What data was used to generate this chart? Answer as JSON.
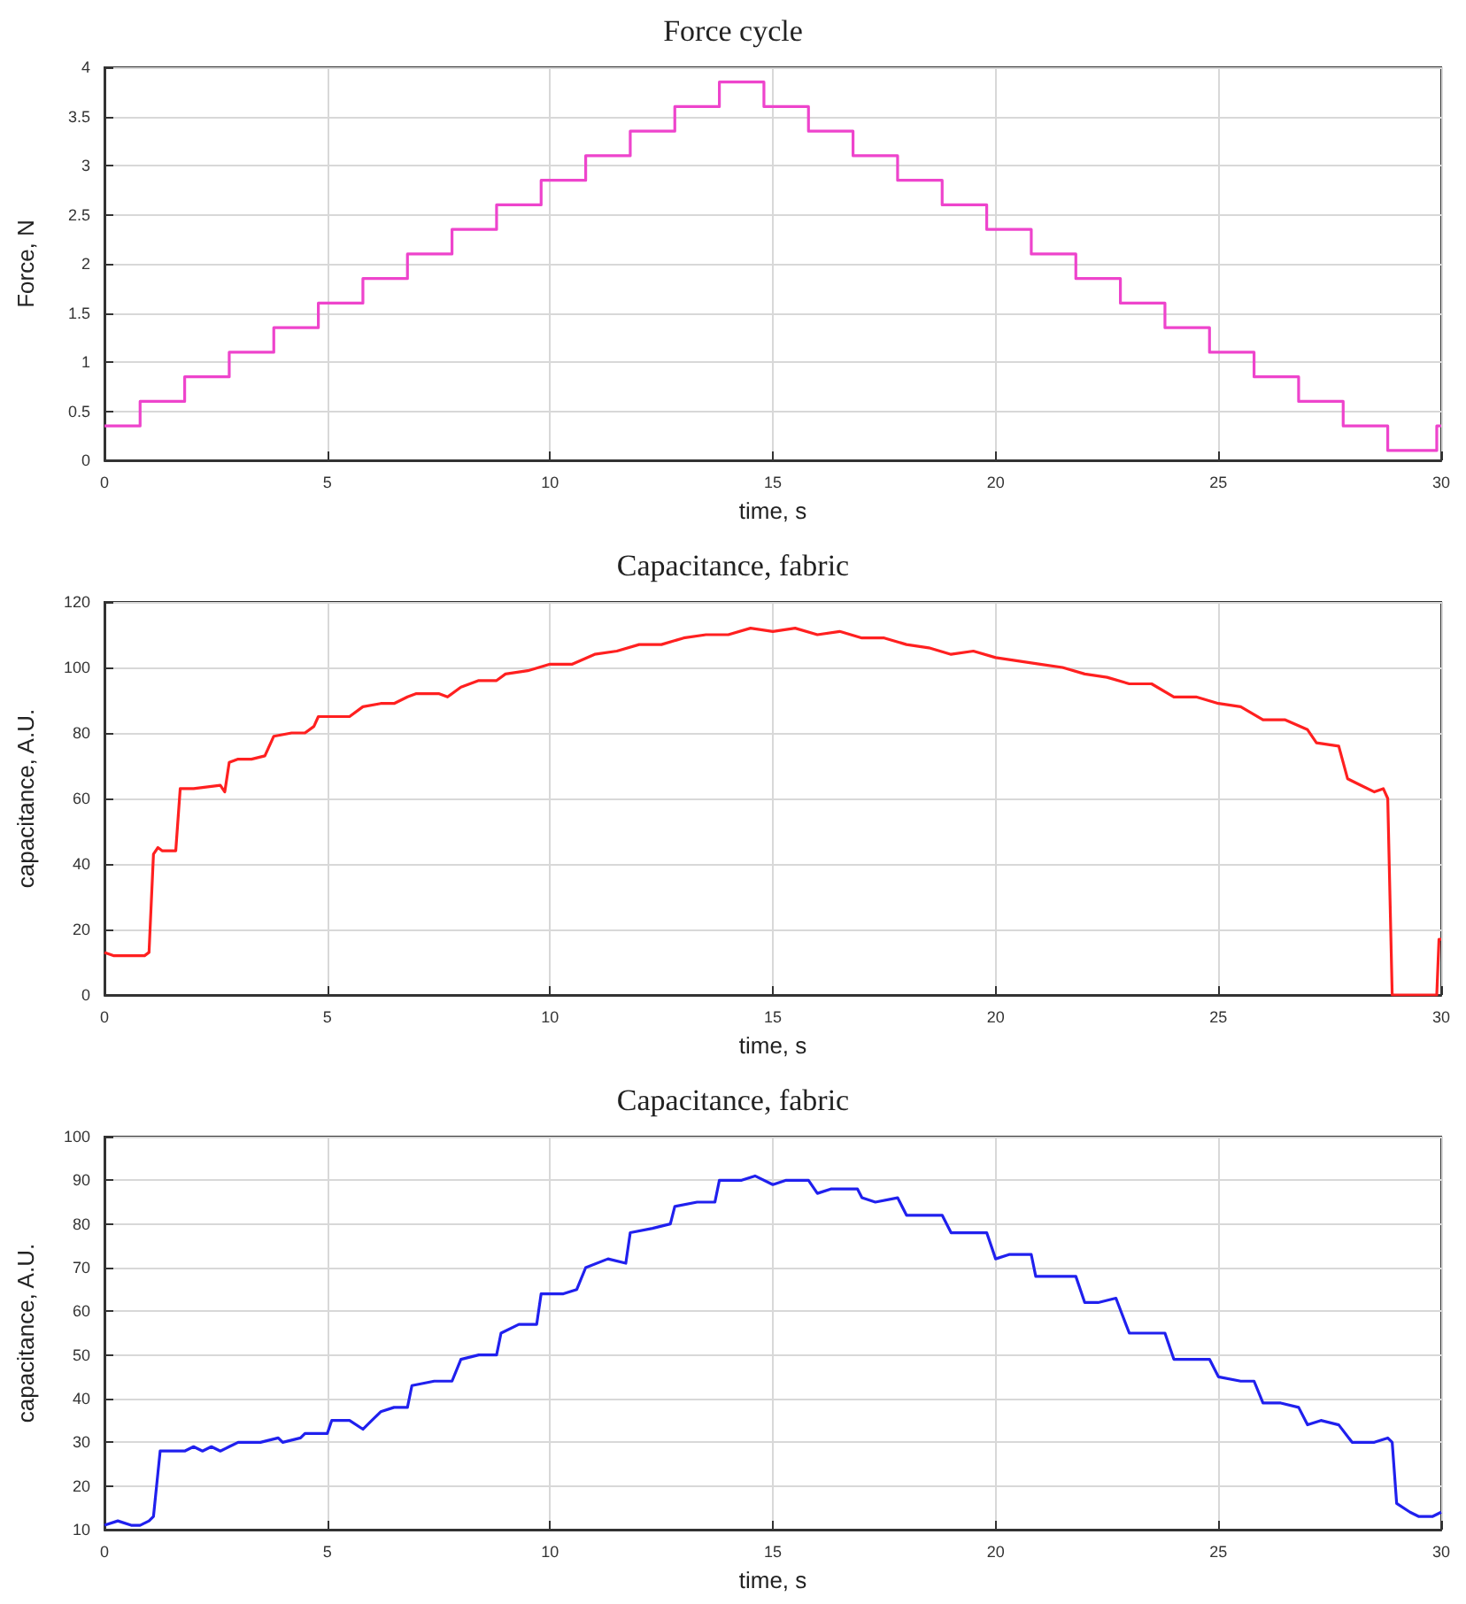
{
  "chart_data": [
    {
      "type": "step",
      "title": "Force cycle",
      "xlabel": "time, s",
      "ylabel": "Force, N",
      "x": [
        0,
        0.8,
        1.8,
        2.8,
        3.8,
        4.8,
        5.8,
        6.8,
        7.8,
        8.8,
        9.8,
        10.8,
        11.8,
        12.8,
        13.8,
        14.8,
        15.8,
        16.8,
        17.8,
        18.8,
        19.8,
        20.8,
        21.8,
        22.8,
        23.8,
        24.8,
        25.8,
        26.8,
        27.8,
        28.8,
        29.9,
        30
      ],
      "series": [
        {
          "color": "#ee44cc",
          "values": [
            0.35,
            0.6,
            0.85,
            1.1,
            1.35,
            1.6,
            1.85,
            2.1,
            2.35,
            2.6,
            2.85,
            3.1,
            3.35,
            3.6,
            3.85,
            3.6,
            3.35,
            3.1,
            2.85,
            2.6,
            2.35,
            2.1,
            1.85,
            1.6,
            1.35,
            1.1,
            0.85,
            0.6,
            0.35,
            0.1,
            0.35,
            0.35
          ]
        }
      ],
      "xlim": [
        0,
        30
      ],
      "xticks": [
        0,
        5,
        10,
        15,
        20,
        25,
        30
      ],
      "ylim": [
        0,
        4
      ],
      "yticks": [
        0,
        0.5,
        1,
        1.5,
        2,
        2.5,
        3,
        3.5,
        4
      ],
      "grid": true
    },
    {
      "type": "line",
      "title": "Capacitance, fabric",
      "xlabel": "time, s",
      "ylabel": "capacitance, A.U.",
      "x": [
        0,
        0.2,
        0.9,
        1.0,
        1.1,
        1.2,
        1.3,
        1.6,
        1.7,
        2.0,
        2.6,
        2.7,
        2.8,
        3.0,
        3.3,
        3.6,
        3.8,
        4.2,
        4.5,
        4.7,
        4.8,
        5.5,
        5.8,
        6.2,
        6.5,
        6.8,
        7.0,
        7.5,
        7.7,
        8.0,
        8.4,
        8.8,
        9.0,
        9.5,
        10,
        10.5,
        11,
        11.5,
        12,
        12.5,
        13,
        13.5,
        14,
        14.5,
        15,
        15.5,
        16,
        16.5,
        17,
        17.5,
        18,
        18.5,
        19,
        19.5,
        20,
        20.5,
        21,
        21.5,
        22,
        22.5,
        23,
        23.5,
        24,
        24.5,
        25,
        25.5,
        26,
        26.5,
        27,
        27.2,
        27.7,
        27.9,
        28.2,
        28.5,
        28.7,
        28.8,
        28.9,
        29.9,
        29.95,
        30
      ],
      "series": [
        {
          "color": "#ff2020",
          "values": [
            13,
            12,
            12,
            13,
            43,
            45,
            44,
            44,
            63,
            63,
            64,
            62,
            71,
            72,
            72,
            73,
            79,
            80,
            80,
            82,
            85,
            85,
            88,
            89,
            89,
            91,
            92,
            92,
            91,
            94,
            96,
            96,
            98,
            99,
            101,
            101,
            104,
            105,
            107,
            107,
            109,
            110,
            110,
            112,
            111,
            112,
            110,
            111,
            109,
            109,
            107,
            106,
            104,
            105,
            103,
            102,
            101,
            100,
            98,
            97,
            95,
            95,
            91,
            91,
            89,
            88,
            84,
            84,
            81,
            77,
            76,
            66,
            64,
            62,
            63,
            60,
            0,
            0,
            17,
            17
          ]
        }
      ],
      "xlim": [
        0,
        30
      ],
      "xticks": [
        0,
        5,
        10,
        15,
        20,
        25,
        30
      ],
      "ylim": [
        0,
        120
      ],
      "yticks": [
        0,
        20,
        40,
        60,
        80,
        100,
        120
      ],
      "grid": true
    },
    {
      "type": "line",
      "title": "Capacitance, fabric",
      "xlabel": "time, s",
      "ylabel": "capacitance, A.U.",
      "x": [
        0,
        0.3,
        0.6,
        0.8,
        1.0,
        1.1,
        1.25,
        1.5,
        1.8,
        2.0,
        2.2,
        2.4,
        2.6,
        2.8,
        3.0,
        3.5,
        3.9,
        4.0,
        4.4,
        4.5,
        5.0,
        5.1,
        5.5,
        5.8,
        6.0,
        6.2,
        6.5,
        6.8,
        6.9,
        7.4,
        7.8,
        8.0,
        8.4,
        8.8,
        8.9,
        9.3,
        9.7,
        9.8,
        10.3,
        10.6,
        10.8,
        11.3,
        11.7,
        11.8,
        12.3,
        12.7,
        12.8,
        13.3,
        13.7,
        13.8,
        14.3,
        14.6,
        15.0,
        15.3,
        15.8,
        16.0,
        16.3,
        16.9,
        17.0,
        17.3,
        17.8,
        18.0,
        18.8,
        19.0,
        19.5,
        19.8,
        20.0,
        20.3,
        20.8,
        20.9,
        21.3,
        21.8,
        22.0,
        22.3,
        22.7,
        23.0,
        23.5,
        23.8,
        24.0,
        24.5,
        24.8,
        25.0,
        25.5,
        25.8,
        26.0,
        26.4,
        26.8,
        27.0,
        27.3,
        27.7,
        28.0,
        28.5,
        28.8,
        28.9,
        29.0,
        29.3,
        29.5,
        29.8,
        30
      ],
      "series": [
        {
          "color": "#2020ee",
          "values": [
            11,
            12,
            11,
            11,
            12,
            13,
            28,
            28,
            28,
            29,
            28,
            29,
            28,
            29,
            30,
            30,
            31,
            30,
            31,
            32,
            32,
            35,
            35,
            33,
            35,
            37,
            38,
            38,
            43,
            44,
            44,
            49,
            50,
            50,
            55,
            57,
            57,
            64,
            64,
            65,
            70,
            72,
            71,
            78,
            79,
            80,
            84,
            85,
            85,
            90,
            90,
            91,
            89,
            90,
            90,
            87,
            88,
            88,
            86,
            85,
            86,
            82,
            82,
            78,
            78,
            78,
            72,
            73,
            73,
            68,
            68,
            68,
            62,
            62,
            63,
            55,
            55,
            55,
            49,
            49,
            49,
            45,
            44,
            44,
            39,
            39,
            38,
            34,
            35,
            34,
            30,
            30,
            31,
            30,
            16,
            14,
            13,
            13,
            14
          ]
        }
      ],
      "xlim": [
        0,
        30
      ],
      "xticks": [
        0,
        5,
        10,
        15,
        20,
        25,
        30
      ],
      "ylim": [
        10,
        100
      ],
      "yticks": [
        10,
        20,
        30,
        40,
        50,
        60,
        70,
        80,
        90,
        100
      ],
      "grid": true
    }
  ]
}
